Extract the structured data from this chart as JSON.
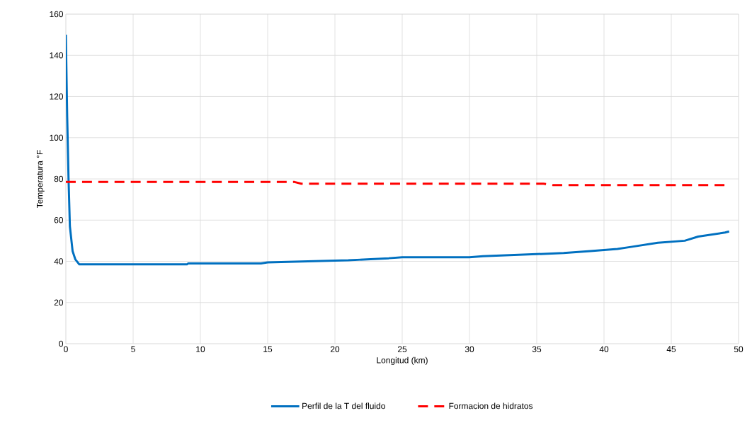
{
  "chart_data": {
    "type": "line",
    "xlabel": "Longitud (km)",
    "ylabel": "Temperatura °F",
    "xlim": [
      0,
      50
    ],
    "xticks": [
      0,
      5,
      10,
      15,
      20,
      25,
      30,
      35,
      40,
      45,
      50
    ],
    "ylim": [
      0,
      160
    ],
    "yticks": [
      0,
      20,
      40,
      60,
      80,
      100,
      120,
      140,
      160
    ],
    "grid": true,
    "legend": "bottom",
    "series": [
      {
        "name": "Perfil de la T del fluido",
        "color": "#0070c0",
        "line_style": "solid",
        "x": [
          0,
          0.1,
          0.2,
          0.3,
          0.5,
          0.7,
          1.0,
          9,
          9.1,
          14.5,
          15,
          18,
          21,
          24,
          25,
          30,
          31,
          33,
          35,
          37,
          39,
          41,
          42,
          43,
          44,
          46,
          47,
          48,
          49,
          49.3
        ],
        "values": [
          150,
          110,
          80,
          57,
          45,
          41,
          38.5,
          38.5,
          39,
          39,
          39.5,
          40,
          40.5,
          41.5,
          42,
          42,
          42.5,
          43,
          43.5,
          44,
          45,
          46,
          47,
          48,
          49,
          50,
          52,
          53,
          54,
          54.5
        ]
      },
      {
        "name": "Formacion de hidratos",
        "color": "#ff0000",
        "line_style": "dashed",
        "x": [
          0,
          17,
          17.5,
          35.5,
          36.2,
          49
        ],
        "values": [
          78.5,
          78.5,
          77.7,
          77.7,
          77,
          77
        ]
      }
    ]
  }
}
